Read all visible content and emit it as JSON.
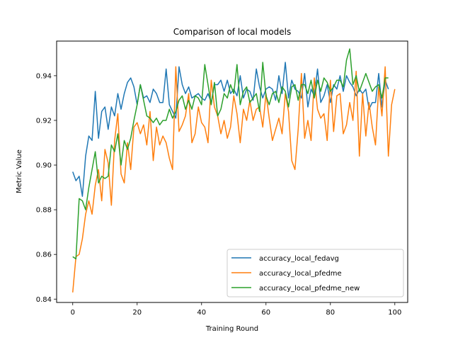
{
  "chart_data": {
    "type": "line",
    "title": "Comparison of local models",
    "xlabel": "Training Round",
    "ylabel": "Metric Value",
    "xlim": [
      -5,
      104
    ],
    "ylim": [
      0.8385,
      0.9555
    ],
    "xticks": [
      0,
      20,
      40,
      60,
      80,
      100
    ],
    "yticks": [
      0.84,
      0.86,
      0.88,
      0.9,
      0.92,
      0.94
    ],
    "ytick_labels": [
      "0.84",
      "0.86",
      "0.88",
      "0.90",
      "0.92",
      "0.94"
    ],
    "grid": false,
    "legend_position": "lower-right",
    "series": [
      {
        "name": "accuracy_local_fedavg",
        "color": "#1f77b4",
        "values": [
          0.897,
          0.893,
          0.895,
          0.886,
          0.904,
          0.913,
          0.911,
          0.933,
          0.912,
          0.924,
          0.926,
          0.916,
          0.926,
          0.922,
          0.932,
          0.925,
          0.932,
          0.937,
          0.939,
          0.935,
          0.927,
          0.936,
          0.93,
          0.931,
          0.928,
          0.934,
          0.932,
          0.928,
          0.928,
          0.943,
          0.927,
          0.924,
          0.921,
          0.944,
          0.936,
          0.932,
          0.935,
          0.93,
          0.931,
          0.932,
          0.93,
          0.929,
          0.932,
          0.928,
          0.936,
          0.936,
          0.938,
          0.933,
          0.938,
          0.932,
          0.934,
          0.931,
          0.94,
          0.93,
          0.934,
          0.933,
          0.929,
          0.943,
          0.935,
          0.93,
          0.934,
          0.935,
          0.934,
          0.929,
          0.94,
          0.932,
          0.946,
          0.93,
          0.938,
          0.934,
          0.933,
          0.93,
          0.941,
          0.926,
          0.934,
          0.931,
          0.943,
          0.928,
          0.931,
          0.936,
          0.928,
          0.936,
          0.934,
          0.94,
          0.933,
          0.94,
          0.937,
          0.935,
          0.931,
          0.934,
          0.932,
          0.934,
          0.925,
          0.928,
          0.928,
          0.941,
          0.926,
          0.938,
          0.934
        ]
      },
      {
        "name": "accuracy_local_pfedme",
        "color": "#ff7f0e",
        "values": [
          0.843,
          0.859,
          0.86,
          0.867,
          0.878,
          0.884,
          0.878,
          0.891,
          0.898,
          0.884,
          0.907,
          0.901,
          0.882,
          0.911,
          0.923,
          0.896,
          0.892,
          0.91,
          0.898,
          0.917,
          0.919,
          0.914,
          0.918,
          0.909,
          0.924,
          0.902,
          0.917,
          0.909,
          0.913,
          0.91,
          0.903,
          0.898,
          0.944,
          0.915,
          0.918,
          0.922,
          0.932,
          0.91,
          0.914,
          0.926,
          0.919,
          0.917,
          0.91,
          0.938,
          0.926,
          0.922,
          0.914,
          0.92,
          0.912,
          0.917,
          0.931,
          0.923,
          0.91,
          0.925,
          0.92,
          0.929,
          0.92,
          0.925,
          0.926,
          0.917,
          0.932,
          0.921,
          0.911,
          0.916,
          0.921,
          0.914,
          0.932,
          0.924,
          0.902,
          0.898,
          0.916,
          0.941,
          0.912,
          0.92,
          0.911,
          0.939,
          0.925,
          0.921,
          0.923,
          0.911,
          0.938,
          0.915,
          0.931,
          0.932,
          0.914,
          0.918,
          0.928,
          0.92,
          0.942,
          0.904,
          0.932,
          0.913,
          0.928,
          0.917,
          0.909,
          0.935,
          0.922,
          0.944,
          0.904,
          0.927,
          0.934
        ]
      },
      {
        "name": "accuracy_local_pfedme_new",
        "color": "#2ca02c",
        "values": [
          0.859,
          0.858,
          0.885,
          0.884,
          0.88,
          0.89,
          0.898,
          0.906,
          0.892,
          0.895,
          0.894,
          0.895,
          0.909,
          0.906,
          0.914,
          0.9,
          0.911,
          0.907,
          0.912,
          0.92,
          0.927,
          0.936,
          0.929,
          0.922,
          0.921,
          0.919,
          0.921,
          0.918,
          0.92,
          0.92,
          0.925,
          0.921,
          0.924,
          0.929,
          0.931,
          0.925,
          0.929,
          0.925,
          0.931,
          0.93,
          0.927,
          0.945,
          0.936,
          0.927,
          0.937,
          0.922,
          0.925,
          0.932,
          0.93,
          0.936,
          0.932,
          0.945,
          0.927,
          0.933,
          0.935,
          0.928,
          0.93,
          0.932,
          0.924,
          0.946,
          0.931,
          0.927,
          0.932,
          0.933,
          0.928,
          0.935,
          0.933,
          0.926,
          0.935,
          0.936,
          0.929,
          0.936,
          0.936,
          0.932,
          0.938,
          0.93,
          0.938,
          0.933,
          0.939,
          0.937,
          0.933,
          0.935,
          0.938,
          0.938,
          0.935,
          0.947,
          0.952,
          0.936,
          0.94,
          0.933,
          0.937,
          0.941,
          0.937,
          0.933,
          0.935,
          0.936,
          0.93,
          0.939,
          0.939
        ]
      }
    ]
  }
}
